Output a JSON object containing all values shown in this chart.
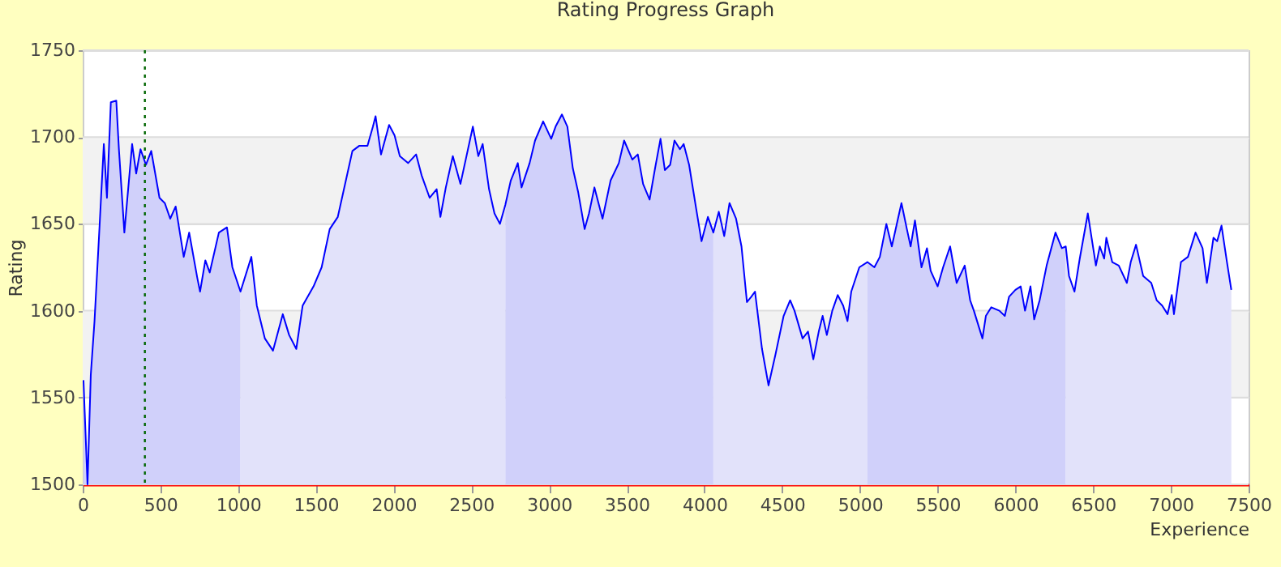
{
  "chart_data": {
    "type": "line",
    "title": "Rating Progress Graph",
    "xlabel": "Experience",
    "ylabel": "Rating",
    "xlim": [
      0,
      7500
    ],
    "xticks": [
      0,
      500,
      1000,
      1500,
      2000,
      2500,
      3000,
      3500,
      4000,
      4500,
      5000,
      5500,
      6000,
      6500,
      7000,
      7500
    ],
    "ylim": [
      1500,
      1750
    ],
    "yticks": [
      1500,
      1550,
      1600,
      1650,
      1700,
      1750
    ],
    "grid": "y",
    "series": [
      {
        "type": "area",
        "color": "#d0d0fa",
        "x": [
          5,
          31,
          52,
          76,
          111,
          136,
          156,
          181,
          216,
          233,
          268,
          318,
          344,
          372,
          407,
          441,
          494,
          528,
          563,
          598,
          650,
          685,
          737,
          755,
          789,
          817,
          876,
          928,
          963,
          1015
        ],
        "values": [
          1560,
          1500,
          1563,
          1594,
          1653,
          1696,
          1665,
          1720,
          1721,
          1693,
          1645,
          1696,
          1679,
          1693,
          1684,
          1692,
          1665,
          1662,
          1653,
          1660,
          1631,
          1645,
          1619,
          1611,
          1629,
          1622,
          1645,
          1648,
          1625,
          1611
        ]
      },
      {
        "type": "area",
        "color": "#e2e2fa",
        "x": [
          1015,
          1085,
          1120,
          1172,
          1224,
          1287,
          1328,
          1374,
          1415,
          1485,
          1537,
          1589,
          1641,
          1693,
          1735,
          1780,
          1832,
          1867,
          1884,
          1919,
          1971,
          2006,
          2040,
          2093,
          2145,
          2180,
          2232,
          2277,
          2301,
          2336,
          2381,
          2430,
          2510,
          2545,
          2573,
          2614,
          2649,
          2684,
          2719
        ],
        "values": [
          1611,
          1631,
          1603,
          1584,
          1577,
          1598,
          1586,
          1578,
          1603,
          1614,
          1625,
          1647,
          1654,
          1675,
          1692,
          1695,
          1695,
          1706,
          1712,
          1690,
          1707,
          1701,
          1689,
          1685,
          1690,
          1678,
          1665,
          1670,
          1654,
          1671,
          1689,
          1673,
          1706,
          1689,
          1696,
          1670,
          1656,
          1650,
          1661
        ]
      },
      {
        "type": "area",
        "color": "#d0d0fa",
        "x": [
          2719,
          2754,
          2799,
          2823,
          2875,
          2910,
          2962,
          3014,
          3042,
          3083,
          3118,
          3153,
          3188,
          3229,
          3257,
          3292,
          3344,
          3396,
          3449,
          3483,
          3536,
          3571,
          3605,
          3647,
          3682,
          3717,
          3745,
          3779,
          3807,
          3842,
          3866,
          3901,
          3946,
          3981,
          4022,
          4057
        ],
        "values": [
          1661,
          1675,
          1685,
          1671,
          1685,
          1698,
          1709,
          1699,
          1706,
          1713,
          1706,
          1682,
          1668,
          1647,
          1656,
          1671,
          1653,
          1675,
          1685,
          1698,
          1687,
          1690,
          1673,
          1664,
          1682,
          1699,
          1681,
          1684,
          1698,
          1693,
          1696,
          1684,
          1659,
          1640,
          1654,
          1645
        ]
      },
      {
        "type": "area",
        "color": "#e2e2fa",
        "x": [
          4057,
          4092,
          4127,
          4161,
          4203,
          4238,
          4273,
          4301,
          4325,
          4370,
          4412,
          4457,
          4509,
          4551,
          4579,
          4631,
          4666,
          4700,
          4735,
          4760,
          4787,
          4822,
          4857,
          4892,
          4920,
          4944,
          4996,
          5048
        ],
        "values": [
          1645,
          1657,
          1643,
          1662,
          1653,
          1637,
          1605,
          1608,
          1611,
          1578,
          1557,
          1575,
          1597,
          1606,
          1600,
          1584,
          1588,
          1572,
          1588,
          1597,
          1586,
          1600,
          1609,
          1603,
          1594,
          1611,
          1625,
          1628
        ]
      },
      {
        "type": "area",
        "color": "#d0d0fa",
        "x": [
          5048,
          5093,
          5128,
          5170,
          5205,
          5267,
          5302,
          5326,
          5354,
          5396,
          5431,
          5455,
          5500,
          5535,
          5580,
          5622,
          5674,
          5709,
          5733,
          5788,
          5810,
          5845,
          5897,
          5932,
          5959,
          6000,
          6034,
          6062,
          6097,
          6121,
          6156,
          6201,
          6258,
          6299,
          6324
        ],
        "values": [
          1628,
          1625,
          1631,
          1650,
          1637,
          1662,
          1647,
          1637,
          1652,
          1625,
          1636,
          1623,
          1614,
          1625,
          1637,
          1616,
          1626,
          1606,
          1600,
          1584,
          1597,
          1602,
          1600,
          1597,
          1608,
          1612,
          1614,
          1600,
          1614,
          1595,
          1606,
          1626,
          1645,
          1636,
          1637
        ]
      },
      {
        "type": "area",
        "color": "#e2e2fa",
        "x": [
          6324,
          6345,
          6380,
          6414,
          6466,
          6518,
          6543,
          6571,
          6585,
          6623,
          6665,
          6717,
          6742,
          6776,
          6822,
          6874,
          6909,
          6944,
          6979,
          7006,
          7020,
          7065,
          7110,
          7159,
          7204,
          7232,
          7274,
          7298,
          7326,
          7361,
          7389
        ],
        "values": [
          1637,
          1620,
          1611,
          1630,
          1656,
          1626,
          1637,
          1630,
          1642,
          1628,
          1626,
          1616,
          1628,
          1638,
          1620,
          1616,
          1606,
          1603,
          1598,
          1609,
          1598,
          1628,
          1631,
          1645,
          1636,
          1616,
          1642,
          1640,
          1649,
          1628,
          1612
        ]
      },
      {
        "type": "line",
        "color": "#0000ff",
        "x": [
          5,
          31,
          52,
          76,
          111,
          136,
          156,
          181,
          216,
          233,
          268,
          318,
          344,
          372,
          407,
          441,
          494,
          528,
          563,
          598,
          650,
          685,
          737,
          755,
          789,
          817,
          876,
          928,
          963,
          1015,
          1085,
          1120,
          1172,
          1224,
          1287,
          1328,
          1374,
          1415,
          1485,
          1537,
          1589,
          1641,
          1693,
          1735,
          1780,
          1832,
          1867,
          1884,
          1919,
          1971,
          2006,
          2040,
          2093,
          2145,
          2180,
          2232,
          2277,
          2301,
          2336,
          2381,
          2430,
          2510,
          2545,
          2573,
          2614,
          2649,
          2684,
          2719,
          2754,
          2799,
          2823,
          2875,
          2910,
          2962,
          3014,
          3042,
          3083,
          3118,
          3153,
          3188,
          3229,
          3257,
          3292,
          3344,
          3396,
          3449,
          3483,
          3536,
          3571,
          3605,
          3647,
          3682,
          3717,
          3745,
          3779,
          3807,
          3842,
          3866,
          3901,
          3946,
          3981,
          4022,
          4057,
          4092,
          4127,
          4161,
          4203,
          4238,
          4273,
          4301,
          4325,
          4370,
          4412,
          4457,
          4509,
          4551,
          4579,
          4631,
          4666,
          4700,
          4735,
          4760,
          4787,
          4822,
          4857,
          4892,
          4920,
          4944,
          4996,
          5048,
          5093,
          5128,
          5170,
          5205,
          5267,
          5302,
          5326,
          5354,
          5396,
          5431,
          5455,
          5500,
          5535,
          5580,
          5622,
          5674,
          5709,
          5733,
          5788,
          5810,
          5845,
          5897,
          5932,
          5959,
          6000,
          6034,
          6062,
          6097,
          6121,
          6156,
          6201,
          6258,
          6299,
          6324,
          6345,
          6380,
          6414,
          6466,
          6518,
          6543,
          6571,
          6585,
          6623,
          6665,
          6717,
          6742,
          6776,
          6822,
          6874,
          6909,
          6944,
          6979,
          7006,
          7020,
          7065,
          7110,
          7159,
          7204,
          7232,
          7274,
          7298,
          7326,
          7361,
          7389
        ],
        "values": [
          1560,
          1500,
          1563,
          1594,
          1653,
          1696,
          1665,
          1720,
          1721,
          1693,
          1645,
          1696,
          1679,
          1693,
          1684,
          1692,
          1665,
          1662,
          1653,
          1660,
          1631,
          1645,
          1619,
          1611,
          1629,
          1622,
          1645,
          1648,
          1625,
          1611,
          1631,
          1603,
          1584,
          1577,
          1598,
          1586,
          1578,
          1603,
          1614,
          1625,
          1647,
          1654,
          1675,
          1692,
          1695,
          1695,
          1706,
          1712,
          1690,
          1707,
          1701,
          1689,
          1685,
          1690,
          1678,
          1665,
          1670,
          1654,
          1671,
          1689,
          1673,
          1706,
          1689,
          1696,
          1670,
          1656,
          1650,
          1661,
          1675,
          1685,
          1671,
          1685,
          1698,
          1709,
          1699,
          1706,
          1713,
          1706,
          1682,
          1668,
          1647,
          1656,
          1671,
          1653,
          1675,
          1685,
          1698,
          1687,
          1690,
          1673,
          1664,
          1682,
          1699,
          1681,
          1684,
          1698,
          1693,
          1696,
          1684,
          1659,
          1640,
          1654,
          1645,
          1657,
          1643,
          1662,
          1653,
          1637,
          1605,
          1608,
          1611,
          1578,
          1557,
          1575,
          1597,
          1606,
          1600,
          1584,
          1588,
          1572,
          1588,
          1597,
          1586,
          1600,
          1609,
          1603,
          1594,
          1611,
          1625,
          1628,
          1625,
          1631,
          1650,
          1637,
          1662,
          1647,
          1637,
          1652,
          1625,
          1636,
          1623,
          1614,
          1625,
          1637,
          1616,
          1626,
          1606,
          1600,
          1584,
          1597,
          1602,
          1600,
          1597,
          1608,
          1612,
          1614,
          1600,
          1614,
          1595,
          1606,
          1626,
          1645,
          1636,
          1637,
          1620,
          1611,
          1630,
          1656,
          1626,
          1637,
          1630,
          1642,
          1628,
          1626,
          1616,
          1628,
          1638,
          1620,
          1616,
          1606,
          1603,
          1598,
          1609,
          1598,
          1628,
          1631,
          1645,
          1636,
          1616,
          1642,
          1640,
          1649,
          1628,
          1612
        ]
      }
    ],
    "bands": [
      {
        "axis": "y",
        "from": 1550,
        "to": 1600,
        "color": "#f2f2f2"
      },
      {
        "axis": "y",
        "from": 1650,
        "to": 1700,
        "color": "#f2f2f2"
      }
    ],
    "ref_lines": [
      {
        "axis": "x",
        "value": 400,
        "color": "#006600",
        "line_style": "dotted"
      }
    ]
  }
}
